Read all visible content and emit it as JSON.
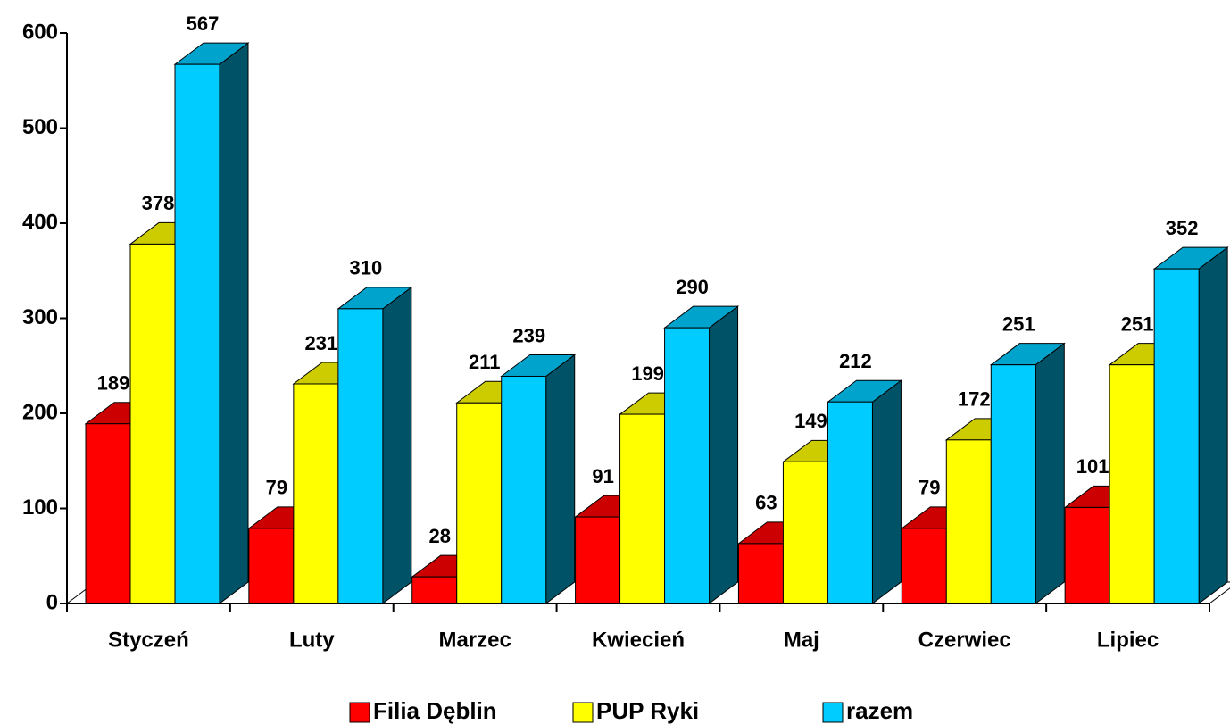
{
  "chart_data": {
    "type": "bar3d",
    "categories": [
      "Styczeń",
      "Luty",
      "Marzec",
      "Kwiecień",
      "Maj",
      "Czerwiec",
      "Lipiec"
    ],
    "series": [
      {
        "name": "Filia Dęblin",
        "color": "#ff0000",
        "values": [
          189,
          79,
          28,
          91,
          63,
          79,
          101
        ]
      },
      {
        "name": "PUP Ryki",
        "color": "#ffff00",
        "values": [
          378,
          231,
          211,
          199,
          149,
          172,
          251
        ]
      },
      {
        "name": "razem",
        "color": "#00ccff",
        "values": [
          567,
          310,
          239,
          290,
          212,
          251,
          352
        ]
      }
    ],
    "ylim": [
      0,
      600
    ],
    "yticks": [
      0,
      100,
      200,
      300,
      400,
      500,
      600
    ],
    "legend": "bottom"
  }
}
